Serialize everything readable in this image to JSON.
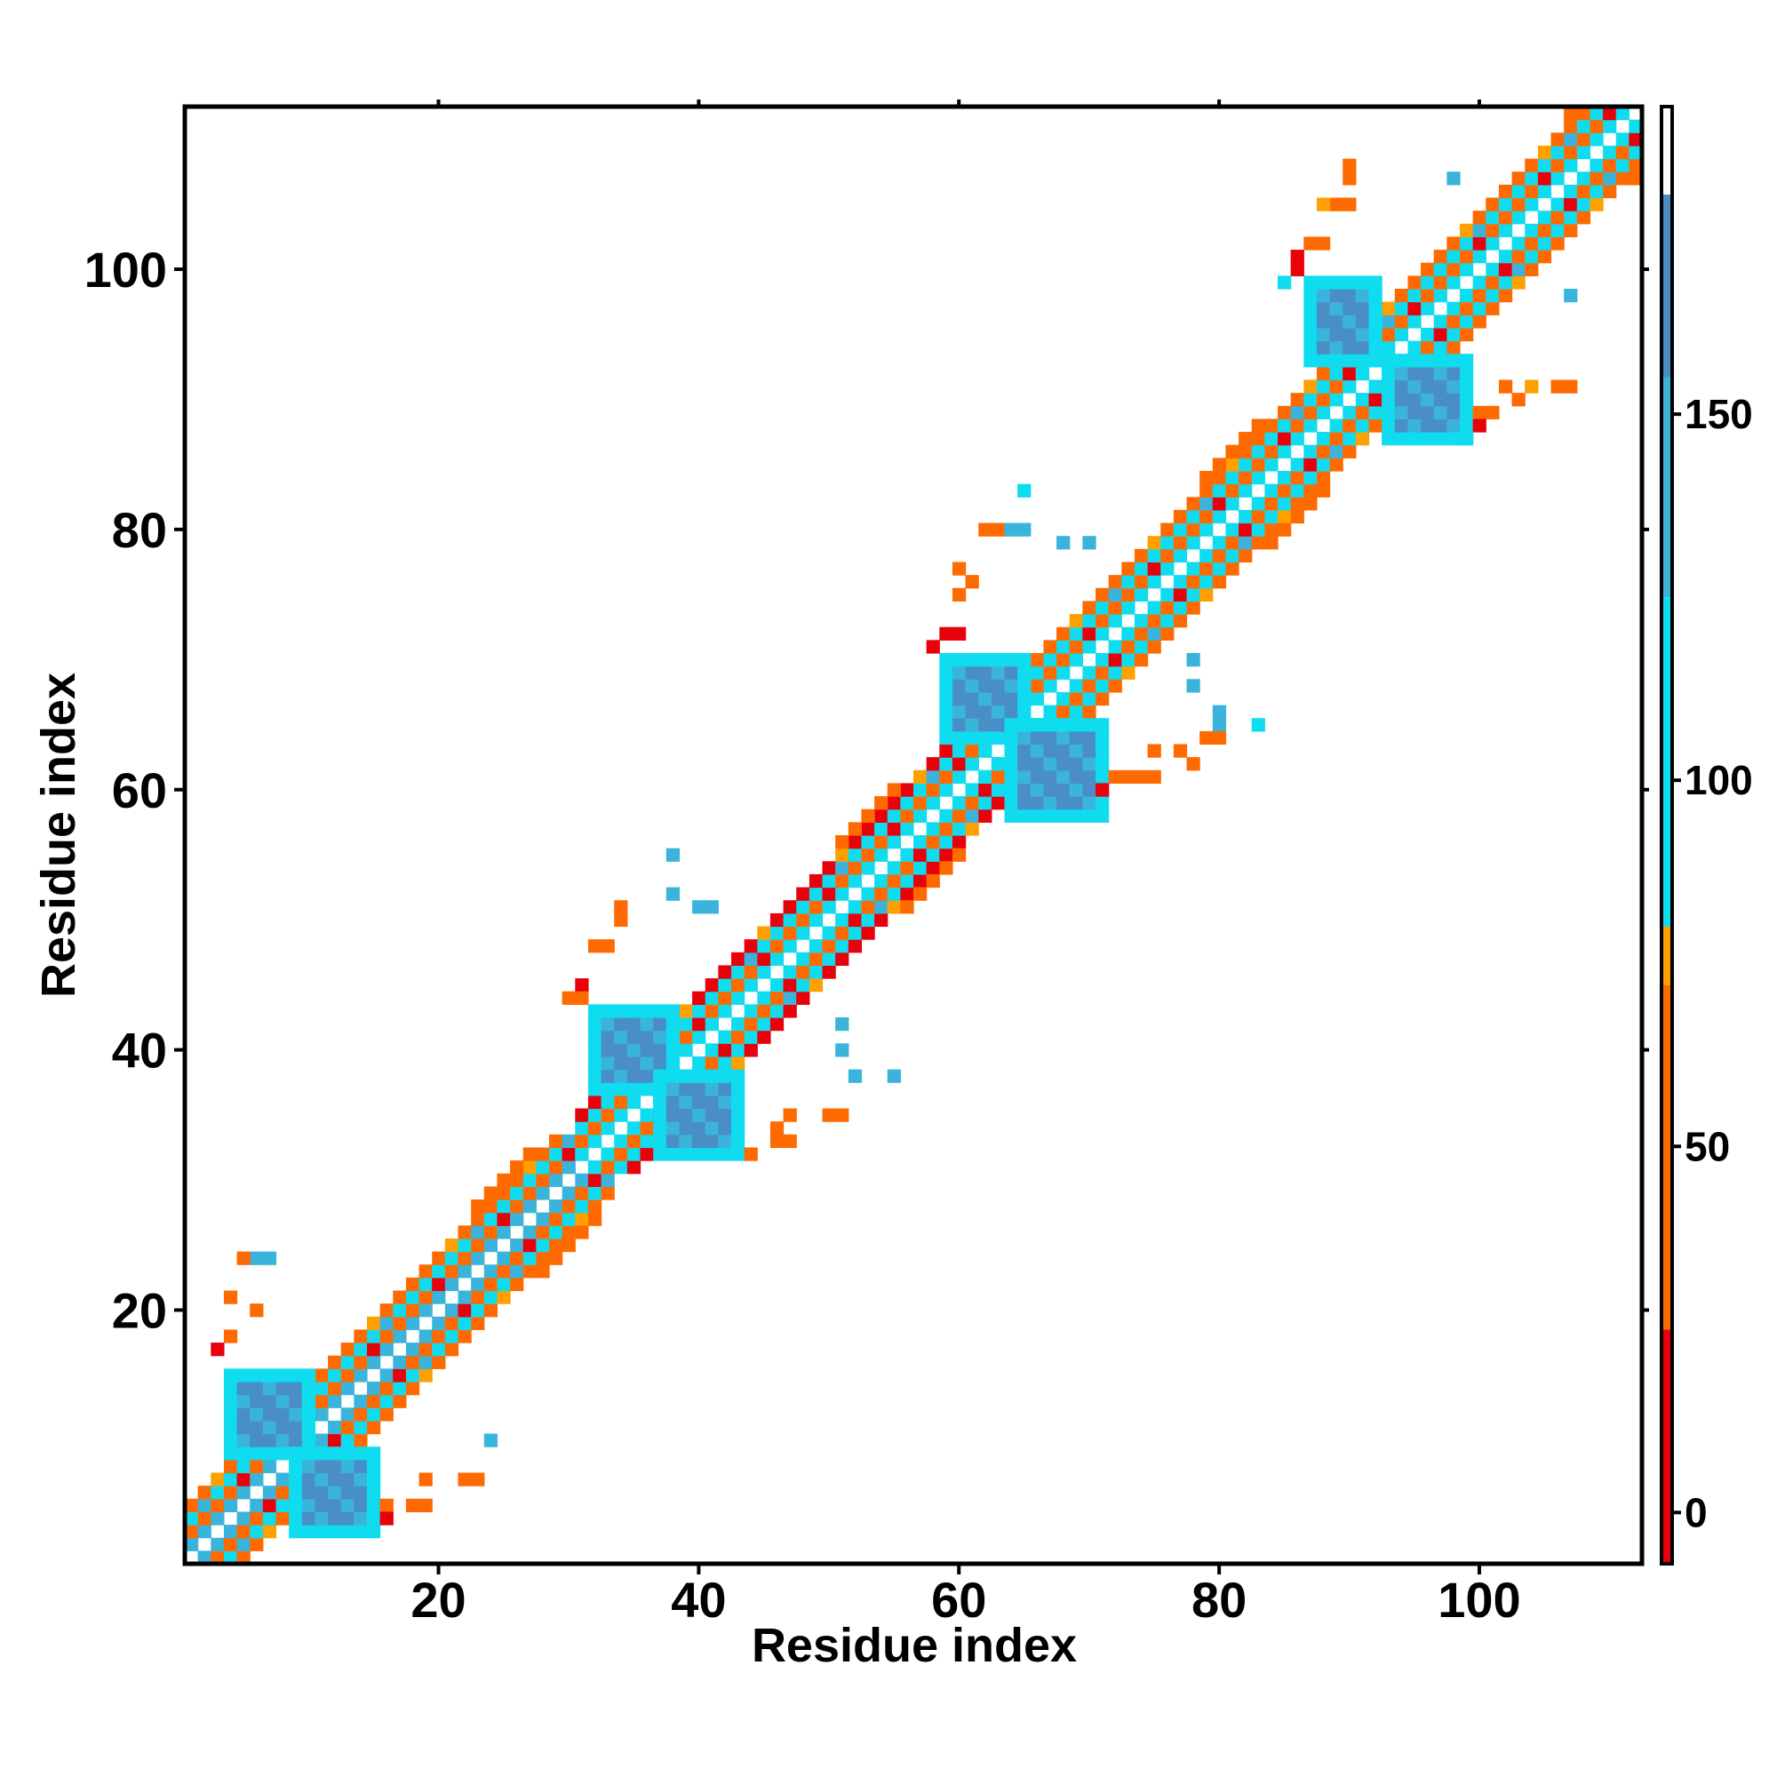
{
  "chart_data": {
    "type": "heatmap",
    "title": "",
    "xlabel": "Residue index",
    "ylabel": "Residue index",
    "xlim": [
      1,
      112
    ],
    "ylim": [
      1,
      112
    ],
    "x_ticks": [
      20,
      40,
      60,
      80,
      100
    ],
    "y_ticks": [
      20,
      40,
      60,
      80,
      100
    ],
    "grid": false,
    "colorbar": {
      "placement": "right",
      "range": [
        -7,
        192
      ],
      "ticks": [
        0,
        50,
        100,
        150
      ],
      "bands": [
        {
          "from": -7,
          "to": 25,
          "color": "#e8000b"
        },
        {
          "from": 25,
          "to": 72,
          "color": "#ff6a00"
        },
        {
          "from": 72,
          "to": 80,
          "color": "#ff9f00"
        },
        {
          "from": 80,
          "to": 125,
          "color": "#0fdcef"
        },
        {
          "from": 125,
          "to": 155,
          "color": "#3bb4dc"
        },
        {
          "from": 155,
          "to": 180,
          "color": "#4a8ec8"
        },
        {
          "from": 180,
          "to": 192,
          "color": "#ffffff"
        }
      ]
    },
    "diagonal_bands": [
      {
        "from": 1,
        "to": 32,
        "diag_colors": [
          "#3bb4dc",
          "#ff6a00",
          "#0fdcef",
          "#ff6a00"
        ]
      },
      {
        "from": 31,
        "to": 62,
        "diag_colors": [
          "#0fdcef",
          "#ff6a00",
          "#0fdcef",
          "#e8000b"
        ]
      },
      {
        "from": 61,
        "to": 92,
        "diag_colors": [
          "#0fdcef",
          "#ff6a00",
          "#0fdcef",
          "#ff6a00"
        ]
      },
      {
        "from": 91,
        "to": 112,
        "diag_colors": [
          "#0fdcef",
          "#ff6a00",
          "#0fdcef",
          "#ff6a00"
        ]
      }
    ],
    "hairpin_blocks": [
      {
        "x": [
          5,
          9
        ],
        "y": [
          10,
          14
        ],
        "color": "#4a8ec8"
      },
      {
        "x": [
          10,
          14
        ],
        "y": [
          4,
          8
        ],
        "color": "#4a8ec8"
      },
      {
        "x": [
          33,
          37
        ],
        "y": [
          38,
          42
        ],
        "color": "#4a8ec8"
      },
      {
        "x": [
          38,
          42
        ],
        "y": [
          33,
          37
        ],
        "color": "#4a8ec8"
      },
      {
        "x": [
          60,
          64
        ],
        "y": [
          65,
          69
        ],
        "color": "#4a8ec8"
      },
      {
        "x": [
          65,
          70
        ],
        "y": [
          59,
          64
        ],
        "color": "#4a8ec8"
      },
      {
        "x": [
          88,
          91
        ],
        "y": [
          94,
          98
        ],
        "color": "#4a8ec8"
      },
      {
        "x": [
          94,
          98
        ],
        "y": [
          88,
          92
        ],
        "color": "#4a8ec8"
      }
    ],
    "scatter_cells": [
      {
        "x": 6,
        "y": 24,
        "v": 150
      },
      {
        "x": 7,
        "y": 24,
        "v": 150
      },
      {
        "x": 5,
        "y": 24,
        "v": 40
      },
      {
        "x": 4,
        "y": 21,
        "v": 40
      },
      {
        "x": 6,
        "y": 20,
        "v": 40
      },
      {
        "x": 4,
        "y": 18,
        "v": 40
      },
      {
        "x": 3,
        "y": 17,
        "v": 10
      },
      {
        "x": 24,
        "y": 10,
        "v": 150
      },
      {
        "x": 23,
        "y": 7,
        "v": 40
      },
      {
        "x": 22,
        "y": 7,
        "v": 40
      },
      {
        "x": 19,
        "y": 7,
        "v": 40
      },
      {
        "x": 19,
        "y": 5,
        "v": 40
      },
      {
        "x": 18,
        "y": 5,
        "v": 40
      },
      {
        "x": 16,
        "y": 5,
        "v": 40
      },
      {
        "x": 16,
        "y": 4,
        "v": 10
      },
      {
        "x": 34,
        "y": 51,
        "v": 40
      },
      {
        "x": 34,
        "y": 50,
        "v": 40
      },
      {
        "x": 33,
        "y": 48,
        "v": 40
      },
      {
        "x": 32,
        "y": 48,
        "v": 40
      },
      {
        "x": 31,
        "y": 45,
        "v": 10
      },
      {
        "x": 30,
        "y": 44,
        "v": 40
      },
      {
        "x": 31,
        "y": 44,
        "v": 40
      },
      {
        "x": 38,
        "y": 55,
        "v": 150
      },
      {
        "x": 38,
        "y": 52,
        "v": 150
      },
      {
        "x": 40,
        "y": 51,
        "v": 150
      },
      {
        "x": 41,
        "y": 51,
        "v": 150
      },
      {
        "x": 51,
        "y": 42,
        "v": 150
      },
      {
        "x": 51,
        "y": 40,
        "v": 150
      },
      {
        "x": 52,
        "y": 38,
        "v": 150
      },
      {
        "x": 55,
        "y": 38,
        "v": 150
      },
      {
        "x": 47,
        "y": 35,
        "v": 40
      },
      {
        "x": 50,
        "y": 35,
        "v": 40
      },
      {
        "x": 51,
        "y": 35,
        "v": 40
      },
      {
        "x": 46,
        "y": 34,
        "v": 40
      },
      {
        "x": 46,
        "y": 33,
        "v": 40
      },
      {
        "x": 47,
        "y": 33,
        "v": 40
      },
      {
        "x": 44,
        "y": 32,
        "v": 40
      },
      {
        "x": 62,
        "y": 80,
        "v": 40
      },
      {
        "x": 63,
        "y": 80,
        "v": 40
      },
      {
        "x": 60,
        "y": 77,
        "v": 40
      },
      {
        "x": 61,
        "y": 76,
        "v": 40
      },
      {
        "x": 60,
        "y": 75,
        "v": 40
      },
      {
        "x": 59,
        "y": 72,
        "v": 10
      },
      {
        "x": 60,
        "y": 72,
        "v": 10
      },
      {
        "x": 58,
        "y": 71,
        "v": 10
      },
      {
        "x": 65,
        "y": 83,
        "v": 110
      },
      {
        "x": 64,
        "y": 80,
        "v": 150
      },
      {
        "x": 65,
        "y": 80,
        "v": 150
      },
      {
        "x": 68,
        "y": 79,
        "v": 150
      },
      {
        "x": 70,
        "y": 79,
        "v": 150
      },
      {
        "x": 78,
        "y": 70,
        "v": 150
      },
      {
        "x": 78,
        "y": 68,
        "v": 150
      },
      {
        "x": 80,
        "y": 66,
        "v": 150
      },
      {
        "x": 80,
        "y": 65,
        "v": 150
      },
      {
        "x": 83,
        "y": 65,
        "v": 110
      },
      {
        "x": 75,
        "y": 63,
        "v": 40
      },
      {
        "x": 77,
        "y": 63,
        "v": 40
      },
      {
        "x": 78,
        "y": 62,
        "v": 40
      },
      {
        "x": 79,
        "y": 64,
        "v": 40
      },
      {
        "x": 80,
        "y": 64,
        "v": 40
      },
      {
        "x": 73,
        "y": 61,
        "v": 40
      },
      {
        "x": 74,
        "y": 61,
        "v": 40
      },
      {
        "x": 75,
        "y": 61,
        "v": 40
      },
      {
        "x": 71,
        "y": 60,
        "v": 10
      },
      {
        "x": 72,
        "y": 61,
        "v": 40
      },
      {
        "x": 90,
        "y": 108,
        "v": 40
      },
      {
        "x": 90,
        "y": 107,
        "v": 40
      },
      {
        "x": 89,
        "y": 105,
        "v": 40
      },
      {
        "x": 90,
        "y": 105,
        "v": 40
      },
      {
        "x": 88,
        "y": 105,
        "v": 75
      },
      {
        "x": 87,
        "y": 102,
        "v": 40
      },
      {
        "x": 88,
        "y": 102,
        "v": 40
      },
      {
        "x": 86,
        "y": 101,
        "v": 10
      },
      {
        "x": 86,
        "y": 100,
        "v": 10
      },
      {
        "x": 85,
        "y": 99,
        "v": 110
      },
      {
        "x": 98,
        "y": 107,
        "v": 150
      },
      {
        "x": 107,
        "y": 98,
        "v": 150
      },
      {
        "x": 102,
        "y": 91,
        "v": 40
      },
      {
        "x": 104,
        "y": 91,
        "v": 75
      },
      {
        "x": 106,
        "y": 91,
        "v": 40
      },
      {
        "x": 107,
        "y": 91,
        "v": 40
      },
      {
        "x": 103,
        "y": 90,
        "v": 40
      },
      {
        "x": 100,
        "y": 89,
        "v": 40
      },
      {
        "x": 101,
        "y": 89,
        "v": 40
      },
      {
        "x": 100,
        "y": 88,
        "v": 10
      },
      {
        "x": 99,
        "y": 87,
        "v": 110
      }
    ]
  }
}
